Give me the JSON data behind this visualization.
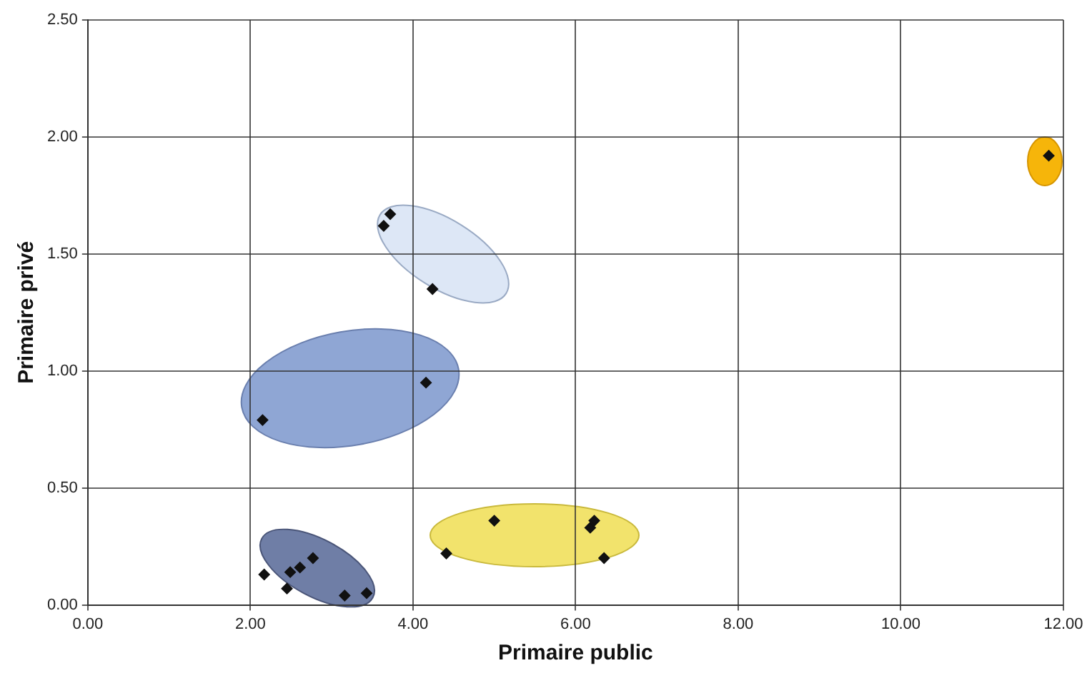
{
  "chart_data": {
    "type": "scatter",
    "xlabel": "Primaire public",
    "ylabel": "Primaire privé",
    "x": [
      2.17,
      2.45,
      2.49,
      2.61,
      2.77,
      3.16,
      3.43,
      4.41,
      5.0,
      6.18,
      6.23,
      6.35,
      3.72,
      3.64,
      4.24,
      4.16,
      2.15,
      11.82
    ],
    "series": [
      {
        "color": "#111111",
        "values": [
          0.13,
          0.07,
          0.14,
          0.16,
          0.2,
          0.04,
          0.05,
          0.22,
          0.36,
          0.33,
          0.36,
          0.2,
          1.67,
          1.62,
          1.35,
          0.95,
          0.79,
          1.92
        ]
      }
    ],
    "xlim": [
      0,
      12
    ],
    "ylim": [
      0,
      2.5
    ],
    "xticks": [
      {
        "value": 0,
        "label": "0.00"
      },
      {
        "value": 2,
        "label": "2.00"
      },
      {
        "value": 4,
        "label": "4.00"
      },
      {
        "value": 6,
        "label": "6.00"
      },
      {
        "value": 8,
        "label": "8.00"
      },
      {
        "value": 10,
        "label": "10.00"
      },
      {
        "value": 12,
        "label": "12.00"
      }
    ],
    "yticks": [
      {
        "value": 0,
        "label": "0.00"
      },
      {
        "value": 0.5,
        "label": "0.50"
      },
      {
        "value": 1,
        "label": "1.00"
      },
      {
        "value": 1.5,
        "label": "1.50"
      },
      {
        "value": 2,
        "label": "2.00"
      },
      {
        "value": 2.5,
        "label": "2.50"
      }
    ],
    "grid": true,
    "legend": false,
    "marker": "diamond"
  }
}
